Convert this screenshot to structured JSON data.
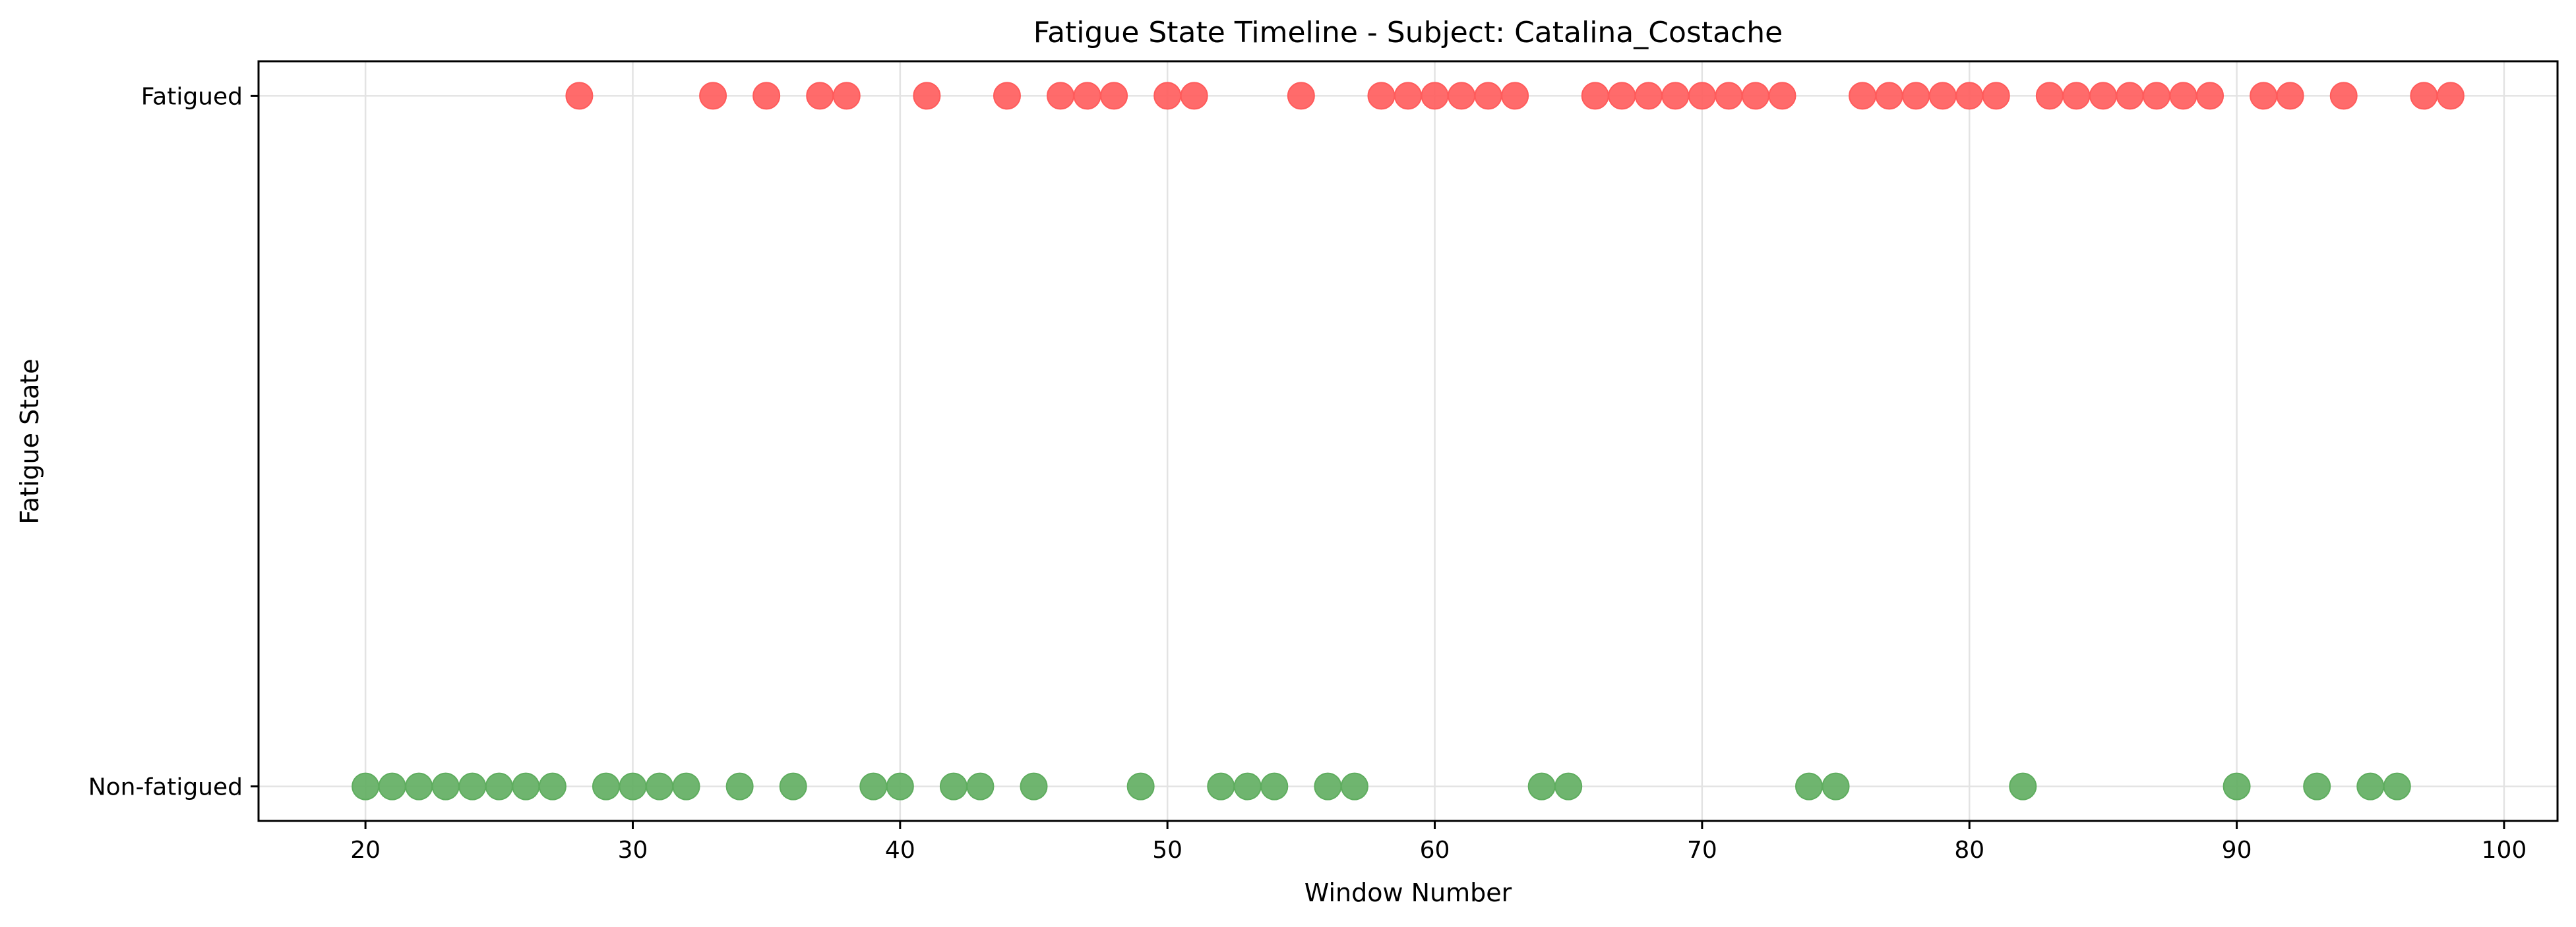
{
  "chart_data": {
    "type": "scatter",
    "title": "Fatigue State Timeline - Subject: Catalina_Costache",
    "xlabel": "Window Number",
    "ylabel": "Fatigue State",
    "xlim": [
      16,
      102
    ],
    "ylim": [
      -0.05,
      1.05
    ],
    "x_ticks": [
      20,
      30,
      40,
      50,
      60,
      70,
      80,
      90,
      100
    ],
    "y_ticks": [
      {
        "value": 0,
        "label": "Non-fatigued"
      },
      {
        "value": 1,
        "label": "Fatigued"
      }
    ],
    "grid": true,
    "series": [
      {
        "color": "#ff5b5b",
        "y": 1,
        "x": [
          28,
          33,
          35,
          37,
          38,
          41,
          44,
          46,
          47,
          48,
          50,
          51,
          55,
          58,
          59,
          60,
          61,
          62,
          63,
          66,
          67,
          68,
          69,
          70,
          71,
          72,
          73,
          76,
          77,
          78,
          79,
          80,
          81,
          83,
          84,
          85,
          86,
          87,
          88,
          89,
          91,
          92,
          94,
          97,
          98
        ]
      },
      {
        "color": "#5fad5f",
        "y": 0,
        "x": [
          20,
          21,
          22,
          23,
          24,
          25,
          26,
          27,
          29,
          30,
          31,
          32,
          34,
          36,
          39,
          40,
          42,
          43,
          45,
          49,
          52,
          53,
          54,
          56,
          57,
          64,
          65,
          74,
          75,
          82,
          90,
          93,
          95,
          96
        ]
      }
    ]
  }
}
